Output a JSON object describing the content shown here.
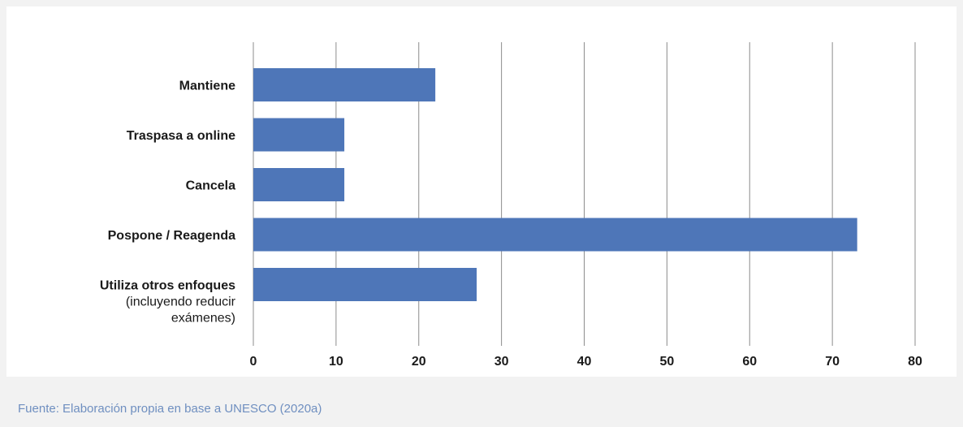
{
  "chart_data": {
    "type": "bar",
    "orientation": "horizontal",
    "categories": [
      {
        "name": "Mantiene",
        "lines": [
          "Mantiene"
        ]
      },
      {
        "name": "Traspasa a online",
        "lines": [
          "Traspasa a online"
        ]
      },
      {
        "name": "Cancela",
        "lines": [
          "Cancela"
        ]
      },
      {
        "name": "Pospone / Reagenda",
        "lines": [
          "Pospone / Reagenda"
        ]
      },
      {
        "name": "Utiliza otros enfoques (incluyendo reducir exámenes)",
        "lines": [
          "Utiliza otros enfoques",
          "(incluyendo reducir",
          "exámenes)"
        ]
      }
    ],
    "values": [
      22,
      11,
      11,
      73,
      27
    ],
    "xlim": [
      0,
      80
    ],
    "xticks": [
      "0",
      "10",
      "20",
      "30",
      "40",
      "50",
      "60",
      "70",
      "80"
    ],
    "grid": true,
    "bar_color": "#4e76b8",
    "title": "",
    "xlabel": "",
    "ylabel": ""
  },
  "source_note": "Fuente: Elaboración propia en base a UNESCO (2020a)"
}
